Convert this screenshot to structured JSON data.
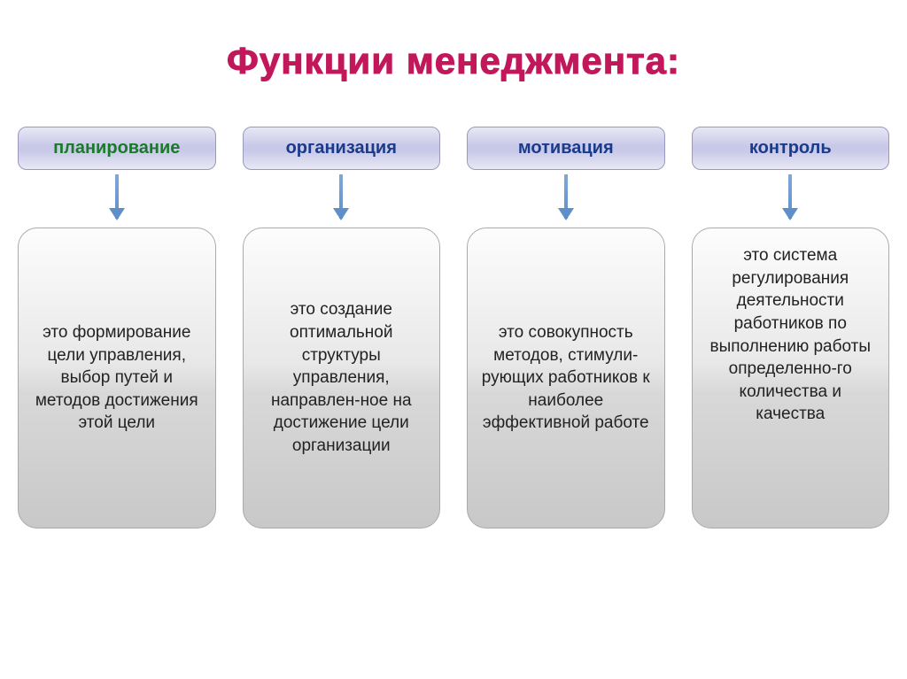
{
  "title": {
    "text": "Функции менеджмента:",
    "color": "#c2185b",
    "fontsize": 42
  },
  "header_box_style": {
    "background": "linear-gradient(to bottom, #e8e8f5 0%, #c8c8e8 45%, #c8c8e8 55%, #e8e8f5 100%)",
    "border_color": "#9999c0",
    "border_radius": 10,
    "fontsize": 20
  },
  "desc_box_style": {
    "background": "linear-gradient(to bottom, #fdfdfd 0%, #e8e8e8 45%, #d8d8d8 55%, #c8c8c8 100%)",
    "border_color": "#aaaaaa",
    "border_radius": 22,
    "fontsize": 19,
    "text_color": "#222222"
  },
  "arrow_style": {
    "shaft_gradient": "linear-gradient(to bottom, #7fa8d8 0%, #5f8fc8 100%)",
    "head_color": "#5f8fc8",
    "width": 4,
    "height": 50
  },
  "columns": [
    {
      "header": "планирование",
      "header_color": "#1a7a2a",
      "desc_alignment": "center",
      "description": "это формирова­ние цели управления, выбор путей и методов достижения этой цели"
    },
    {
      "header": "организация",
      "header_color": "#1a3a8a",
      "desc_alignment": "center",
      "description": "это создание оптимально­й структуры управления, направлен-ное на достижение цели организации"
    },
    {
      "header": "мотивация",
      "header_color": "#1a3a8a",
      "desc_alignment": "center",
      "description": "это совокупност­ь методов, стимули-рующих работников к наиболее эффективно­й работе"
    },
    {
      "header": "контроль",
      "header_color": "#1a3a8a",
      "desc_alignment": "flex-start",
      "description": "это система регулировани­я деятельности работников по выполнению работы определенно-го количества и качества"
    }
  ]
}
